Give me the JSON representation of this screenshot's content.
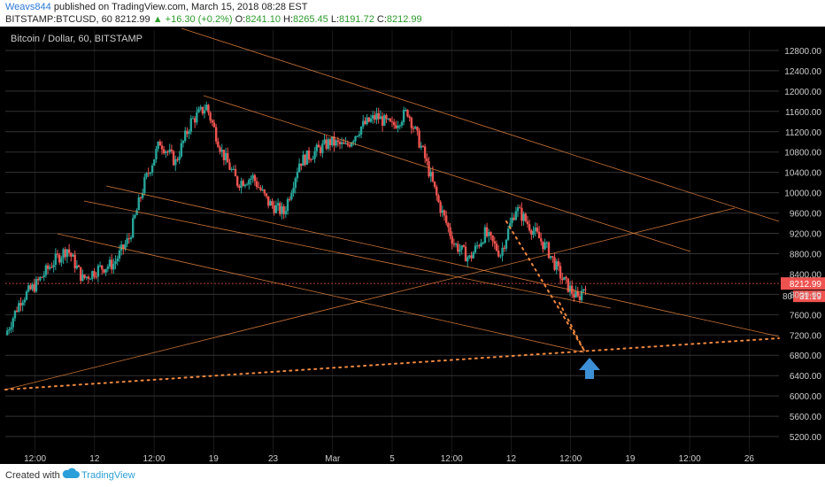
{
  "header": {
    "author": "Weavs844",
    "published": "published on TradingView.com, March 15, 2018 08:28 EST",
    "symbol": "BITSTAMP:BTCUSD, 60",
    "last": "8212.99",
    "change": "+16.30 (+0.2%)",
    "o_label": "O:",
    "o_value": "8241.10",
    "h_label": "H:",
    "h_value": "8265.45",
    "l_label": "L:",
    "l_value": "8191.72",
    "c_label": "C:",
    "c_value": "8212.99"
  },
  "footer": {
    "created": "Created with",
    "brand": "TradingView"
  },
  "colors": {
    "background": "#000000",
    "grid": "#333333",
    "up": "#26a69a",
    "down": "#ef5350",
    "trendline": "#f0883e",
    "price_tag": "#ef5350",
    "arrow": "#3d8fd6"
  },
  "chart_data": {
    "type": "candlestick",
    "title": "Bitcoin / Dollar, 60, BITSTAMP",
    "ylim": [
      4800,
      13200
    ],
    "y_ticks": [
      "5200.00",
      "5600.00",
      "6000.00",
      "6400.00",
      "6800.00",
      "7200.00",
      "7600.00",
      "8000.00",
      "8400.00",
      "8800.00",
      "9200.00",
      "9600.00",
      "10000.00",
      "10400.00",
      "10800.00",
      "11200.00",
      "11600.00",
      "12000.00",
      "12400.00",
      "12800.00"
    ],
    "x_ticks": [
      "12:00",
      "12",
      "12:00",
      "19",
      "23",
      "Mar",
      "5",
      "12:00",
      "12",
      "12:00",
      "19",
      "12:00",
      "26"
    ],
    "last_price_label": "8212.99",
    "countdown_label": "31:19",
    "countdown_prefix": "80",
    "grid": true,
    "price_path": [
      [
        0,
        7200
      ],
      [
        2,
        7900
      ],
      [
        4,
        8200
      ],
      [
        6,
        8600
      ],
      [
        8,
        8900
      ],
      [
        10,
        8300
      ],
      [
        12,
        8500
      ],
      [
        14,
        8600
      ],
      [
        16,
        9100
      ],
      [
        18,
        10200
      ],
      [
        20,
        11000
      ],
      [
        22,
        10600
      ],
      [
        24,
        11400
      ],
      [
        26,
        11700
      ],
      [
        28,
        10800
      ],
      [
        30,
        10200
      ],
      [
        32,
        10300
      ],
      [
        34,
        9800
      ],
      [
        36,
        9600
      ],
      [
        38,
        10600
      ],
      [
        40,
        10800
      ],
      [
        42,
        11000
      ],
      [
        44,
        10900
      ],
      [
        46,
        11300
      ],
      [
        48,
        11500
      ],
      [
        50,
        11300
      ],
      [
        52,
        11600
      ],
      [
        54,
        10800
      ],
      [
        56,
        9800
      ],
      [
        58,
        9000
      ],
      [
        60,
        8700
      ],
      [
        62,
        9200
      ],
      [
        64,
        8800
      ],
      [
        66,
        9700
      ],
      [
        68,
        9300
      ],
      [
        70,
        8900
      ],
      [
        72,
        8300
      ],
      [
        74,
        7900
      ],
      [
        75,
        8213
      ]
    ],
    "annotations": [
      {
        "type": "channel_line",
        "from": [
          0,
          8800
        ],
        "to": [
          60,
          9500
        ]
      },
      {
        "type": "trendline",
        "from": [
          0,
          6000
        ],
        "to": [
          100,
          6900
        ]
      },
      {
        "type": "projection",
        "from": [
          72,
          8050
        ],
        "to": [
          78,
          6750
        ]
      },
      {
        "type": "arrow_up",
        "at": [
          78,
          6400
        ]
      }
    ]
  }
}
